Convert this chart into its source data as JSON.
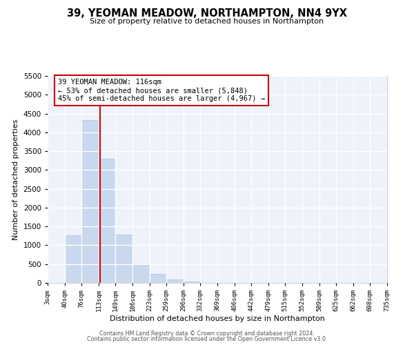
{
  "title": "39, YEOMAN MEADOW, NORTHAMPTON, NN4 9YX",
  "subtitle": "Size of property relative to detached houses in Northampton",
  "xlabel": "Distribution of detached houses by size in Northampton",
  "ylabel": "Number of detached properties",
  "bar_color": "#c8d8ee",
  "bar_edge_color": "#a8bedc",
  "marker_line_color": "#cc0000",
  "marker_value": 116,
  "bin_edges": [
    3,
    40,
    76,
    113,
    149,
    186,
    223,
    259,
    296,
    332,
    369,
    406,
    442,
    479,
    515,
    552,
    589,
    625,
    662,
    698,
    735
  ],
  "bin_labels": [
    "3sqm",
    "40sqm",
    "76sqm",
    "113sqm",
    "149sqm",
    "186sqm",
    "223sqm",
    "259sqm",
    "296sqm",
    "332sqm",
    "369sqm",
    "406sqm",
    "442sqm",
    "479sqm",
    "515sqm",
    "552sqm",
    "589sqm",
    "625sqm",
    "662sqm",
    "698sqm",
    "735sqm"
  ],
  "bar_heights": [
    0,
    1270,
    4330,
    3300,
    1290,
    480,
    240,
    85,
    40,
    0,
    0,
    0,
    0,
    0,
    0,
    0,
    0,
    0,
    0,
    0
  ],
  "ylim": [
    0,
    5500
  ],
  "yticks": [
    0,
    500,
    1000,
    1500,
    2000,
    2500,
    3000,
    3500,
    4000,
    4500,
    5000,
    5500
  ],
  "annotation_title": "39 YEOMAN MEADOW: 116sqm",
  "annotation_line1": "← 53% of detached houses are smaller (5,848)",
  "annotation_line2": "45% of semi-detached houses are larger (4,967) →",
  "footer_line1": "Contains HM Land Registry data © Crown copyright and database right 2024.",
  "footer_line2": "Contains public sector information licensed under the Open Government Licence v3.0.",
  "background_color": "#edf2fb",
  "grid_color": "#ffffff",
  "fig_bg_color": "#ffffff"
}
